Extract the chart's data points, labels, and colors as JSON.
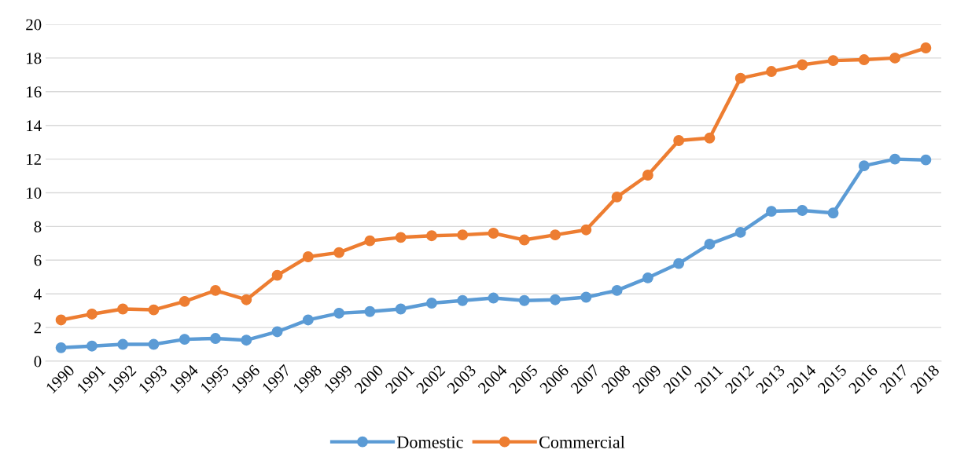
{
  "chart_data": {
    "type": "line",
    "categories": [
      "1990",
      "1991",
      "1992",
      "1993",
      "1994",
      "1995",
      "1996",
      "1997",
      "1998",
      "1999",
      "2000",
      "2001",
      "2002",
      "2003",
      "2004",
      "2005",
      "2006",
      "2007",
      "2008",
      "2009",
      "2010",
      "2011",
      "2012",
      "2013",
      "2014",
      "2015",
      "2016",
      "2017",
      "2018"
    ],
    "series": [
      {
        "name": "Domestic",
        "color": "#5b9bd5",
        "values": [
          0.8,
          0.9,
          1.0,
          1.0,
          1.3,
          1.35,
          1.25,
          1.75,
          2.45,
          2.85,
          2.95,
          3.1,
          3.45,
          3.6,
          3.75,
          3.6,
          3.65,
          3.8,
          4.2,
          4.95,
          5.8,
          6.95,
          7.65,
          8.9,
          8.95,
          8.8,
          11.6,
          12.0,
          11.95
        ]
      },
      {
        "name": "Commercial",
        "color": "#ed7d31",
        "values": [
          2.45,
          2.8,
          3.1,
          3.05,
          3.55,
          4.2,
          3.65,
          5.1,
          6.2,
          6.45,
          7.15,
          7.35,
          7.45,
          7.5,
          7.6,
          7.2,
          7.5,
          7.8,
          9.75,
          11.05,
          13.1,
          13.25,
          16.8,
          17.2,
          17.6,
          17.85,
          17.9,
          18.0,
          18.6
        ]
      }
    ],
    "ylim": [
      0,
      20
    ],
    "yticks": [
      0,
      2,
      4,
      6,
      8,
      10,
      12,
      14,
      16,
      18,
      20
    ],
    "grid": "y",
    "legend": "bottom",
    "marker": "circle",
    "line_style": "solid"
  }
}
